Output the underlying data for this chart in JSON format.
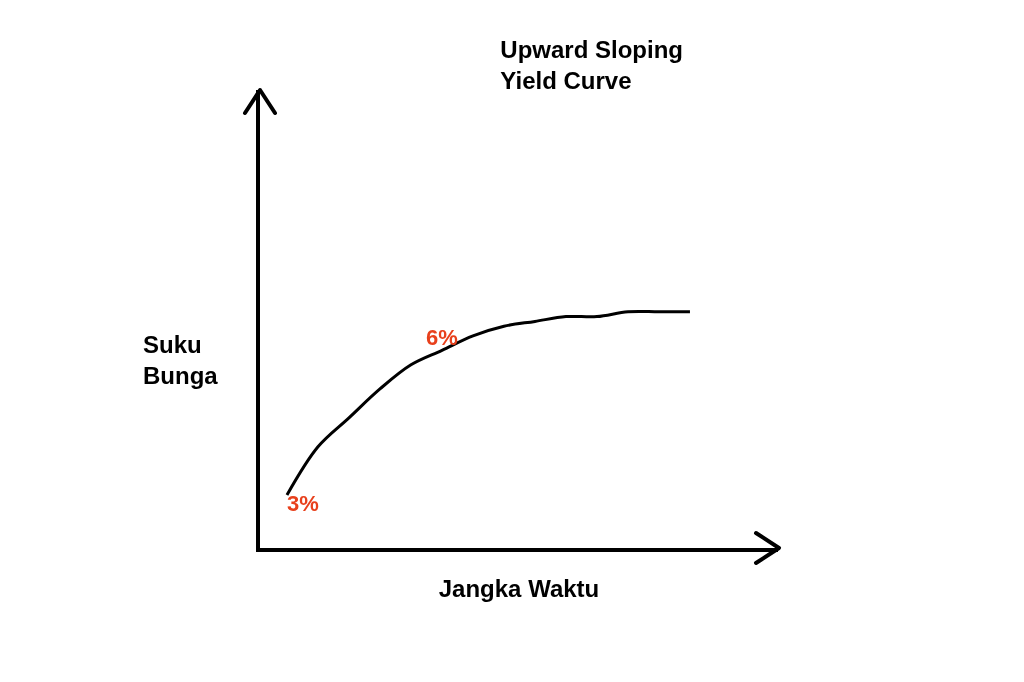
{
  "chart_data": {
    "type": "line",
    "title": "Upward Sloping Yield Curve",
    "xlabel": "Jangka Waktu",
    "ylabel": "Suku Bunga",
    "ylim": [
      1.9,
      11.4
    ],
    "tick_labels": false,
    "categories": [
      null,
      null,
      null,
      null,
      null,
      null,
      null,
      null,
      null,
      null,
      null,
      null,
      null,
      null
    ],
    "series": [
      {
        "color": "#000000",
        "values": [
          3.0,
          4.0,
          4.6,
          5.2,
          5.7,
          6.0,
          6.3,
          6.5,
          6.6,
          6.7,
          6.7,
          6.8,
          6.8,
          6.8
        ],
        "value_labels": [
          "3%",
          null,
          null,
          null,
          null,
          "6%",
          null,
          null,
          null,
          null,
          null,
          null,
          null,
          null
        ]
      }
    ]
  }
}
